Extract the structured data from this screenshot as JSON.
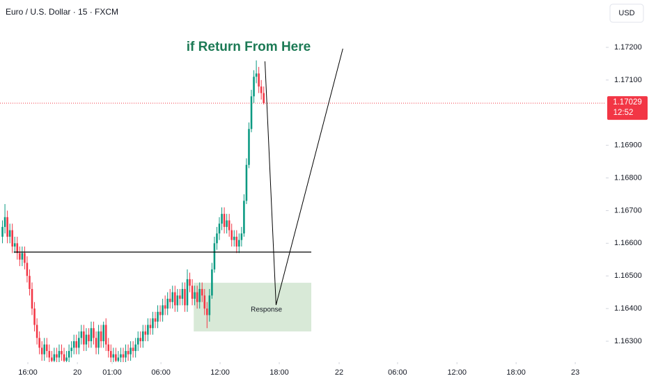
{
  "chart_data": {
    "type": "candlestick",
    "title": "Euro / U.S. Dollar · 15 · FXCM",
    "currency": "USD",
    "up_color": "#089981",
    "down_color": "#f23645",
    "xlim": [
      -1,
      244.8
    ],
    "ylim": [
      1.16236,
      1.17345
    ],
    "xticks": [
      {
        "value": 10.3,
        "label": "16:00"
      },
      {
        "value": 30.4,
        "label": "20"
      },
      {
        "value": 44.5,
        "label": "01:00"
      },
      {
        "value": 64.3,
        "label": "06:00"
      },
      {
        "value": 88.3,
        "label": "12:00"
      },
      {
        "value": 112.3,
        "label": "18:00"
      },
      {
        "value": 136.6,
        "label": "22"
      },
      {
        "value": 160.3,
        "label": "06:00"
      },
      {
        "value": 184.4,
        "label": "12:00"
      },
      {
        "value": 208.4,
        "label": "18:00"
      },
      {
        "value": 232.4,
        "label": "23"
      }
    ],
    "yticks": [
      {
        "value": 1.172,
        "label": "1.17200"
      },
      {
        "value": 1.171,
        "label": "1.17100"
      },
      {
        "value": 1.169,
        "label": "1.16900"
      },
      {
        "value": 1.168,
        "label": "1.16800"
      },
      {
        "value": 1.167,
        "label": "1.16700"
      },
      {
        "value": 1.166,
        "label": "1.16600"
      },
      {
        "value": 1.165,
        "label": "1.16500"
      },
      {
        "value": 1.164,
        "label": "1.16400"
      },
      {
        "value": 1.163,
        "label": "1.16300"
      }
    ],
    "last_price": {
      "value": 1.17029,
      "label": "1.17029"
    },
    "countdown": "12:52",
    "annotation": "if Return From Here",
    "level": {
      "value": 1.16573,
      "x": [
        4.6,
        125.3
      ]
    },
    "zone": {
      "label": "Response",
      "x": [
        77.6,
        125.3
      ],
      "y": [
        1.1633,
        1.16479
      ],
      "color": "#4c9a4a"
    },
    "projection": {
      "x": [
        106.5,
        111,
        138.1
      ],
      "y": [
        1.17157,
        1.16411,
        1.17196
      ]
    },
    "candles": [
      [
        1.1662,
        1.1667,
        1.166,
        1.1665
      ],
      [
        1.1665,
        1.1672,
        1.1663,
        1.1668
      ],
      [
        1.1668,
        1.167,
        1.166,
        1.1662
      ],
      [
        1.1662,
        1.1666,
        1.166,
        1.1664
      ],
      [
        1.1664,
        1.1666,
        1.1657,
        1.1659
      ],
      [
        1.1659,
        1.1662,
        1.1657,
        1.166
      ],
      [
        1.166,
        1.1662,
        1.1655,
        1.1657
      ],
      [
        1.1657,
        1.1659,
        1.1653,
        1.1655
      ],
      [
        1.1655,
        1.1659,
        1.1653,
        1.1657
      ],
      [
        1.1657,
        1.1659,
        1.1652,
        1.1654
      ],
      [
        1.1654,
        1.1656,
        1.1648,
        1.165
      ],
      [
        1.165,
        1.1652,
        1.1644,
        1.1646
      ],
      [
        1.1646,
        1.1648,
        1.1638,
        1.164
      ],
      [
        1.164,
        1.1642,
        1.1633,
        1.1635
      ],
      [
        1.1635,
        1.1637,
        1.1629,
        1.1631
      ],
      [
        1.1631,
        1.1633,
        1.1626,
        1.1628
      ],
      [
        1.1628,
        1.163,
        1.1624,
        1.1626
      ],
      [
        1.1626,
        1.1631,
        1.1624,
        1.1629
      ],
      [
        1.1629,
        1.1631,
        1.1625,
        1.1627
      ],
      [
        1.1627,
        1.1629,
        1.1623,
        1.1625
      ],
      [
        1.1625,
        1.1627,
        1.1622,
        1.1624
      ],
      [
        1.1624,
        1.1628,
        1.1622,
        1.1626
      ],
      [
        1.1626,
        1.1628,
        1.1623,
        1.1625
      ],
      [
        1.1625,
        1.1629,
        1.1623,
        1.1627
      ],
      [
        1.1627,
        1.1629,
        1.1624,
        1.1626
      ],
      [
        1.1626,
        1.1628,
        1.1622,
        1.1624
      ],
      [
        1.1624,
        1.1627,
        1.1622,
        1.1625
      ],
      [
        1.1625,
        1.1629,
        1.1623,
        1.1627
      ],
      [
        1.1627,
        1.163,
        1.1625,
        1.1628
      ],
      [
        1.1628,
        1.1632,
        1.1626,
        1.163
      ],
      [
        1.163,
        1.1632,
        1.1626,
        1.1628
      ],
      [
        1.1628,
        1.1633,
        1.1626,
        1.1631
      ],
      [
        1.1631,
        1.1635,
        1.1629,
        1.1633
      ],
      [
        1.1633,
        1.1635,
        1.1627,
        1.1629
      ],
      [
        1.1629,
        1.1634,
        1.1627,
        1.1632
      ],
      [
        1.1632,
        1.1634,
        1.1628,
        1.163
      ],
      [
        1.163,
        1.1636,
        1.1628,
        1.1634
      ],
      [
        1.1634,
        1.1636,
        1.1629,
        1.1631
      ],
      [
        1.1631,
        1.1633,
        1.1626,
        1.1628
      ],
      [
        1.1628,
        1.1635,
        1.1626,
        1.1633
      ],
      [
        1.1633,
        1.1635,
        1.1628,
        1.163
      ],
      [
        1.163,
        1.1636,
        1.1628,
        1.1635
      ],
      [
        1.1635,
        1.1637,
        1.1627,
        1.1629
      ],
      [
        1.1629,
        1.1631,
        1.1625,
        1.1627
      ],
      [
        1.1627,
        1.1629,
        1.1623,
        1.1625
      ],
      [
        1.1625,
        1.1628,
        1.1623,
        1.1626
      ],
      [
        1.1626,
        1.1628,
        1.1622,
        1.1624
      ],
      [
        1.1624,
        1.1627,
        1.1622,
        1.1625
      ],
      [
        1.1625,
        1.1628,
        1.1623,
        1.1626
      ],
      [
        1.1626,
        1.1628,
        1.1623,
        1.1625
      ],
      [
        1.1625,
        1.1629,
        1.1623,
        1.1627
      ],
      [
        1.1627,
        1.1629,
        1.1624,
        1.1626
      ],
      [
        1.1626,
        1.163,
        1.1624,
        1.1628
      ],
      [
        1.1628,
        1.163,
        1.1625,
        1.1627
      ],
      [
        1.1627,
        1.1631,
        1.1625,
        1.1629
      ],
      [
        1.1629,
        1.1633,
        1.1627,
        1.1631
      ],
      [
        1.1631,
        1.1633,
        1.1628,
        1.163
      ],
      [
        1.163,
        1.1635,
        1.1628,
        1.1633
      ],
      [
        1.1633,
        1.1635,
        1.163,
        1.1632
      ],
      [
        1.1632,
        1.1637,
        1.163,
        1.1635
      ],
      [
        1.1635,
        1.1637,
        1.1632,
        1.1634
      ],
      [
        1.1634,
        1.1639,
        1.1632,
        1.1637
      ],
      [
        1.1637,
        1.1639,
        1.1634,
        1.1636
      ],
      [
        1.1636,
        1.1641,
        1.1634,
        1.1639
      ],
      [
        1.1639,
        1.1641,
        1.1636,
        1.1638
      ],
      [
        1.1638,
        1.1643,
        1.1636,
        1.1641
      ],
      [
        1.1641,
        1.1644,
        1.1638,
        1.164
      ],
      [
        1.164,
        1.1645,
        1.1638,
        1.1643
      ],
      [
        1.1643,
        1.1646,
        1.164,
        1.1642
      ],
      [
        1.1642,
        1.1647,
        1.164,
        1.1645
      ],
      [
        1.1645,
        1.1647,
        1.1639,
        1.1641
      ],
      [
        1.1641,
        1.1646,
        1.1639,
        1.1644
      ],
      [
        1.1644,
        1.1646,
        1.1641,
        1.1643
      ],
      [
        1.1643,
        1.1648,
        1.1641,
        1.1646
      ],
      [
        1.1646,
        1.1648,
        1.1639,
        1.1641
      ],
      [
        1.1641,
        1.1652,
        1.1639,
        1.1649
      ],
      [
        1.1649,
        1.1651,
        1.1645,
        1.1647
      ],
      [
        1.1647,
        1.1649,
        1.1641,
        1.1643
      ],
      [
        1.1643,
        1.1647,
        1.1641,
        1.1645
      ],
      [
        1.1645,
        1.1647,
        1.164,
        1.1642
      ],
      [
        1.1642,
        1.1648,
        1.164,
        1.1646
      ],
      [
        1.1646,
        1.1648,
        1.1642,
        1.1644
      ],
      [
        1.1644,
        1.1646,
        1.1638,
        1.164
      ],
      [
        1.164,
        1.1642,
        1.1634,
        1.1638
      ],
      [
        1.1638,
        1.1646,
        1.1636,
        1.1644
      ],
      [
        1.1644,
        1.1654,
        1.1643,
        1.1652
      ],
      [
        1.1652,
        1.1662,
        1.1651,
        1.166
      ],
      [
        1.166,
        1.1665,
        1.1658,
        1.1663
      ],
      [
        1.1663,
        1.1668,
        1.1661,
        1.1666
      ],
      [
        1.1666,
        1.1671,
        1.1664,
        1.1669
      ],
      [
        1.1669,
        1.1671,
        1.1663,
        1.1665
      ],
      [
        1.1665,
        1.1669,
        1.1663,
        1.1667
      ],
      [
        1.1667,
        1.1669,
        1.1662,
        1.1664
      ],
      [
        1.1664,
        1.1666,
        1.1659,
        1.1661
      ],
      [
        1.1661,
        1.1664,
        1.1659,
        1.1662
      ],
      [
        1.1662,
        1.1664,
        1.1657,
        1.1659
      ],
      [
        1.1659,
        1.1663,
        1.1657,
        1.1661
      ],
      [
        1.1661,
        1.1665,
        1.1659,
        1.1663
      ],
      [
        1.1663,
        1.1675,
        1.1662,
        1.1673
      ],
      [
        1.1673,
        1.1686,
        1.1672,
        1.1684
      ],
      [
        1.1684,
        1.1697,
        1.1683,
        1.1695
      ],
      [
        1.1695,
        1.1707,
        1.1694,
        1.1705
      ],
      [
        1.1705,
        1.1713,
        1.1703,
        1.1711
      ],
      [
        1.1711,
        1.1716,
        1.1709,
        1.1712
      ],
      [
        1.1712,
        1.1714,
        1.1706,
        1.1708
      ],
      [
        1.1708,
        1.171,
        1.1704,
        1.1706
      ],
      [
        1.1706,
        1.1708,
        1.17025,
        1.17029
      ]
    ]
  }
}
